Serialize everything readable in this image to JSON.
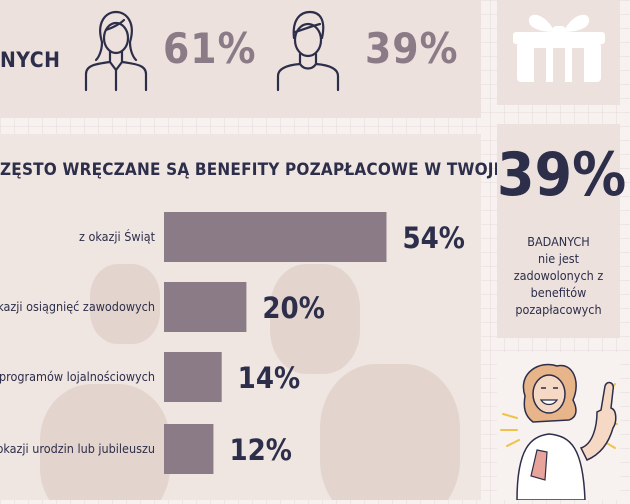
{
  "header": {
    "label": "NYCH",
    "women_pct": "61%",
    "men_pct": "39%"
  },
  "question": "ZĘSTO WRĘCZANE SĄ BENEFITY POZAPŁACOWE W TWOJEJ FIRMIE?",
  "colors": {
    "bar": "#8a7b86",
    "text": "#2d2e4a",
    "panel": "#ece1dd"
  },
  "chart_data": {
    "type": "bar",
    "orientation": "horizontal",
    "categories": [
      "z okazji Świąt",
      "okazji osiągnięć zawodowych",
      "programów lojalnościowych",
      "okazji urodzin lub jubileuszu"
    ],
    "values": [
      54,
      20,
      14,
      12
    ],
    "value_labels": [
      "54%",
      "20%",
      "14%",
      "12%"
    ],
    "title": "ZĘSTO WRĘCZANE SĄ BENEFITY POZAPŁACOWE W TWOJEJ FIRMIE?",
    "xlim": [
      0,
      100
    ]
  },
  "stat": {
    "value": "39%",
    "line1": "BADANYCH",
    "line2": "nie jest",
    "line3": "zadowolonych z",
    "line4": "benefitów",
    "line5": "pozapłacowych"
  },
  "icons": [
    "woman-icon",
    "man-icon",
    "gift-icon",
    "thumbs-up-woman-icon"
  ]
}
